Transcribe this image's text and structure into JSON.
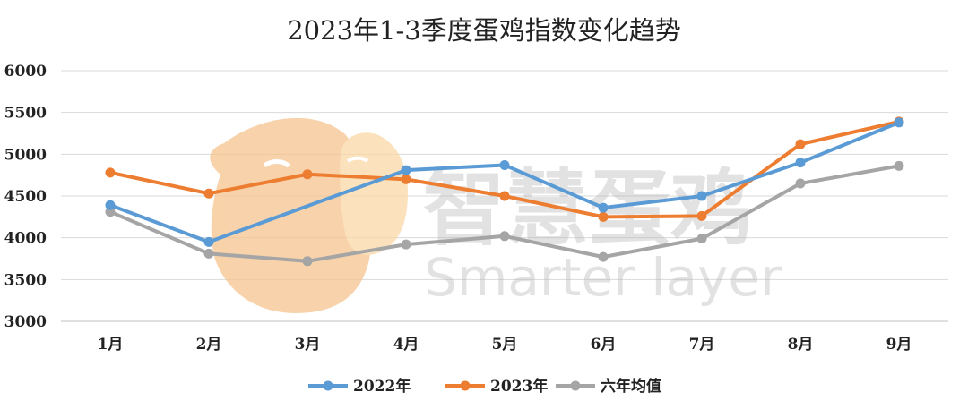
{
  "chart_data": {
    "type": "line",
    "title": "2023年1-3季度蛋鸡指数变化趋势",
    "categories": [
      "1月",
      "2月",
      "3月",
      "4月",
      "5月",
      "6月",
      "7月",
      "8月",
      "9月"
    ],
    "ylim": [
      3000,
      6000
    ],
    "yticks": [
      3000,
      3500,
      4000,
      4500,
      5000,
      5500,
      6000
    ],
    "grid": true,
    "legend_position": "bottom",
    "series": [
      {
        "name": "2022年",
        "color": "#5b9bd5",
        "values": [
          4390,
          3950,
          null,
          4810,
          4870,
          4360,
          4500,
          4900,
          5380
        ]
      },
      {
        "name": "2023年",
        "color": "#ed7d31",
        "values": [
          4780,
          4530,
          4760,
          4700,
          4500,
          4250,
          4260,
          5120,
          5390
        ]
      },
      {
        "name": "六年均值",
        "color": "#a5a5a5",
        "values": [
          4310,
          3810,
          3720,
          3920,
          4020,
          3770,
          3990,
          4650,
          4860
        ]
      }
    ]
  },
  "watermark": {
    "text_cn": "智慧蛋鸡",
    "text_en": "Smarter layer",
    "logo_color": "#f5c48e"
  }
}
